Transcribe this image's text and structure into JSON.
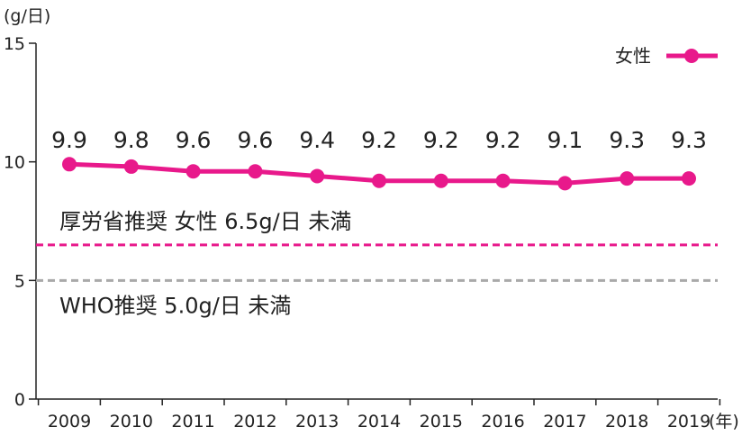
{
  "chart_data": {
    "type": "line",
    "title": "",
    "ylabel": "(g/日)",
    "xlabel": "(年)",
    "ylim": [
      0,
      15
    ],
    "yticks": [
      0,
      5,
      10,
      15
    ],
    "categories": [
      "2009",
      "2010",
      "2011",
      "2012",
      "2013",
      "2014",
      "2015",
      "2016",
      "2017",
      "2018",
      "2019"
    ],
    "series": [
      {
        "name": "女性",
        "values": [
          9.9,
          9.8,
          9.6,
          9.6,
          9.4,
          9.2,
          9.2,
          9.2,
          9.1,
          9.3,
          9.3
        ],
        "value_labels": [
          "9.9",
          "9.8",
          "9.6",
          "9.6",
          "9.4",
          "9.2",
          "9.2",
          "9.2",
          "9.1",
          "9.3",
          "9.3"
        ],
        "color": "#e8198b"
      }
    ],
    "reference_lines": [
      {
        "value": 6.5,
        "label": "厚労省推奨 女性 6.5g/日 未満",
        "color": "#e8198b",
        "style": "dashed"
      },
      {
        "value": 5.0,
        "label": "WHO推奨 5.0g/日 未満",
        "color": "#a9a9a9",
        "style": "dashed"
      }
    ],
    "legend_position": "top-right",
    "grid": false
  }
}
